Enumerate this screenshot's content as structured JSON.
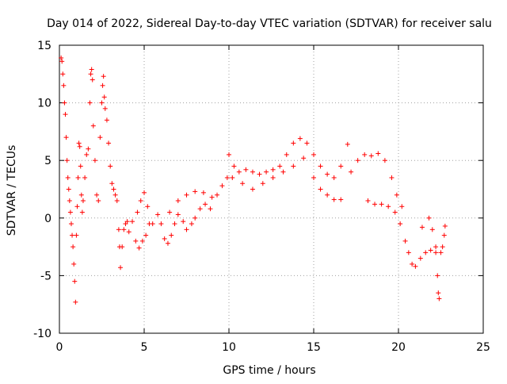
{
  "chart_data": {
    "type": "scatter",
    "title": "Day 014 of 2022, Sidereal Day-to-day VTEC variation (SDTVAR) for receiver salu",
    "xlabel": "GPS time / hours",
    "ylabel": "SDTVAR / TECUs",
    "xlim": [
      0,
      25
    ],
    "ylim": [
      -10,
      15
    ],
    "xticks": [
      0,
      5,
      10,
      15,
      20,
      25
    ],
    "yticks": [
      -10,
      -5,
      0,
      5,
      10,
      15
    ],
    "grid": true,
    "marker": "+",
    "series_color": "#ff0000",
    "series": [
      {
        "name": "SDTVAR",
        "points": [
          [
            0.1,
            13.9
          ],
          [
            0.15,
            13.6
          ],
          [
            0.2,
            12.5
          ],
          [
            0.25,
            11.5
          ],
          [
            0.3,
            10.0
          ],
          [
            0.35,
            9.0
          ],
          [
            0.4,
            7.0
          ],
          [
            0.45,
            5.0
          ],
          [
            0.5,
            3.5
          ],
          [
            0.55,
            2.5
          ],
          [
            0.6,
            1.5
          ],
          [
            0.65,
            0.5
          ],
          [
            0.7,
            -0.5
          ],
          [
            0.75,
            -1.5
          ],
          [
            0.8,
            -2.5
          ],
          [
            0.85,
            -4.0
          ],
          [
            0.9,
            -5.5
          ],
          [
            0.95,
            -7.3
          ],
          [
            1.0,
            -1.5
          ],
          [
            1.05,
            1.0
          ],
          [
            1.1,
            3.5
          ],
          [
            1.15,
            6.5
          ],
          [
            1.2,
            6.2
          ],
          [
            1.25,
            4.5
          ],
          [
            1.3,
            2.0
          ],
          [
            1.35,
            0.5
          ],
          [
            1.4,
            1.5
          ],
          [
            1.5,
            3.5
          ],
          [
            1.6,
            5.5
          ],
          [
            1.7,
            6.0
          ],
          [
            1.8,
            10.0
          ],
          [
            1.85,
            12.5
          ],
          [
            1.9,
            12.9
          ],
          [
            1.95,
            12.0
          ],
          [
            2.0,
            8.0
          ],
          [
            2.1,
            5.0
          ],
          [
            2.2,
            2.0
          ],
          [
            2.3,
            1.5
          ],
          [
            2.4,
            7.0
          ],
          [
            2.5,
            10.0
          ],
          [
            2.55,
            11.5
          ],
          [
            2.6,
            12.3
          ],
          [
            2.65,
            10.5
          ],
          [
            2.7,
            9.5
          ],
          [
            2.8,
            8.5
          ],
          [
            2.9,
            6.5
          ],
          [
            3.0,
            4.5
          ],
          [
            3.1,
            3.0
          ],
          [
            3.2,
            2.5
          ],
          [
            3.3,
            2.0
          ],
          [
            3.4,
            1.5
          ],
          [
            3.5,
            -1.0
          ],
          [
            3.55,
            -2.5
          ],
          [
            3.6,
            -4.3
          ],
          [
            3.7,
            -2.5
          ],
          [
            3.8,
            -1.0
          ],
          [
            3.9,
            -0.5
          ],
          [
            4.0,
            -0.3
          ],
          [
            4.1,
            -1.2
          ],
          [
            4.3,
            -0.3
          ],
          [
            4.5,
            -2.0
          ],
          [
            4.7,
            -2.6
          ],
          [
            4.9,
            -2.0
          ],
          [
            5.1,
            -1.5
          ],
          [
            5.3,
            -0.5
          ],
          [
            4.6,
            0.5
          ],
          [
            4.8,
            1.5
          ],
          [
            5.0,
            2.2
          ],
          [
            5.2,
            1.0
          ],
          [
            5.5,
            -0.5
          ],
          [
            5.8,
            0.3
          ],
          [
            6.0,
            -0.5
          ],
          [
            6.2,
            -1.8
          ],
          [
            6.4,
            -2.2
          ],
          [
            6.6,
            -1.5
          ],
          [
            6.8,
            -0.5
          ],
          [
            7.0,
            0.3
          ],
          [
            7.3,
            -0.3
          ],
          [
            7.5,
            -1.0
          ],
          [
            7.8,
            -0.5
          ],
          [
            8.0,
            0.0
          ],
          [
            8.3,
            0.8
          ],
          [
            8.6,
            1.2
          ],
          [
            8.9,
            0.8
          ],
          [
            6.5,
            0.5
          ],
          [
            7.0,
            1.5
          ],
          [
            7.5,
            2.0
          ],
          [
            8.0,
            2.3
          ],
          [
            8.5,
            2.2
          ],
          [
            9.0,
            1.8
          ],
          [
            9.3,
            2.0
          ],
          [
            9.6,
            2.8
          ],
          [
            9.9,
            3.5
          ],
          [
            10.0,
            5.5
          ],
          [
            10.3,
            4.5
          ],
          [
            10.6,
            4.0
          ],
          [
            11.0,
            4.2
          ],
          [
            11.4,
            4.0
          ],
          [
            11.8,
            3.8
          ],
          [
            12.2,
            4.0
          ],
          [
            12.6,
            4.2
          ],
          [
            13.0,
            4.5
          ],
          [
            13.4,
            5.5
          ],
          [
            13.8,
            6.5
          ],
          [
            14.2,
            6.9
          ],
          [
            14.6,
            6.5
          ],
          [
            15.0,
            5.5
          ],
          [
            15.4,
            4.5
          ],
          [
            15.8,
            3.8
          ],
          [
            16.2,
            3.5
          ],
          [
            16.6,
            4.5
          ],
          [
            17.0,
            6.4
          ],
          [
            10.2,
            3.5
          ],
          [
            10.8,
            3.0
          ],
          [
            11.4,
            2.5
          ],
          [
            12.0,
            3.0
          ],
          [
            12.6,
            3.5
          ],
          [
            13.2,
            4.0
          ],
          [
            13.8,
            4.5
          ],
          [
            14.4,
            5.2
          ],
          [
            15.0,
            3.5
          ],
          [
            15.4,
            2.5
          ],
          [
            15.8,
            2.0
          ],
          [
            16.2,
            1.6
          ],
          [
            16.6,
            1.6
          ],
          [
            17.2,
            4.0
          ],
          [
            17.6,
            5.0
          ],
          [
            18.0,
            5.5
          ],
          [
            18.4,
            5.4
          ],
          [
            18.8,
            5.6
          ],
          [
            19.2,
            5.0
          ],
          [
            19.6,
            3.5
          ],
          [
            19.9,
            2.0
          ],
          [
            20.2,
            1.0
          ],
          [
            18.2,
            1.5
          ],
          [
            18.6,
            1.2
          ],
          [
            19.0,
            1.2
          ],
          [
            19.4,
            1.0
          ],
          [
            19.8,
            0.5
          ],
          [
            20.1,
            -0.5
          ],
          [
            20.4,
            -2.0
          ],
          [
            20.6,
            -3.0
          ],
          [
            20.8,
            -4.0
          ],
          [
            21.0,
            -4.2
          ],
          [
            21.3,
            -3.5
          ],
          [
            21.6,
            -3.0
          ],
          [
            21.9,
            -2.8
          ],
          [
            22.2,
            -3.0
          ],
          [
            21.4,
            -0.8
          ],
          [
            21.8,
            0.0
          ],
          [
            22.0,
            -1.0
          ],
          [
            22.2,
            -2.5
          ],
          [
            22.3,
            -5.0
          ],
          [
            22.35,
            -6.5
          ],
          [
            22.4,
            -7.0
          ],
          [
            22.5,
            -3.0
          ],
          [
            22.6,
            -2.5
          ],
          [
            22.7,
            -1.5
          ],
          [
            22.75,
            -0.7
          ]
        ]
      }
    ]
  }
}
